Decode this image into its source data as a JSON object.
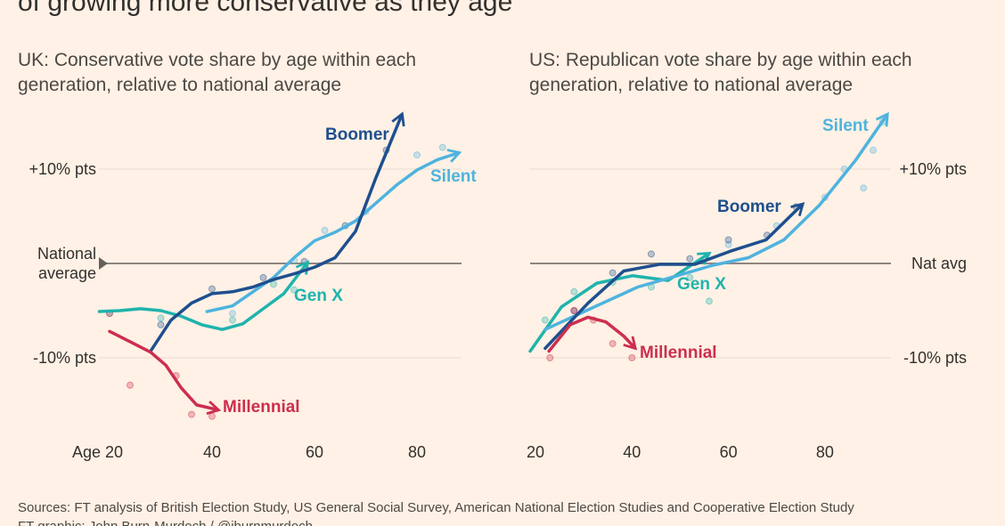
{
  "title": "of growing more conservative as they age",
  "chart_data": [
    {
      "type": "line",
      "title": "UK: Conservative vote share by age within each generation, relative to national average",
      "xlim": [
        18,
        88
      ],
      "xticks": [
        {
          "value": 20,
          "label": "Age 20"
        },
        40,
        60,
        80
      ],
      "ylim": [
        -17,
        16
      ],
      "yticks": [
        {
          "value": -10,
          "label": "-10% pts"
        },
        {
          "value": 0,
          "label": "National average"
        },
        {
          "value": 10,
          "label": "+10% pts"
        }
      ],
      "series": [
        {
          "name": "Gen X",
          "color": "#1fb3ad",
          "x": [
            18,
            22,
            26,
            30,
            34,
            38,
            42,
            46,
            50,
            54,
            58.5
          ],
          "values": [
            -5.1,
            -5,
            -4.8,
            -5,
            -5.6,
            -6.5,
            -7,
            -6.4,
            -4.8,
            -3.2,
            0
          ],
          "dots": {
            "x": [
              20,
              30,
              44,
              52,
              56
            ],
            "y": [
              -5.3,
              -5.8,
              -6,
              -2.2,
              -2.8
            ]
          }
        },
        {
          "name": "Silent",
          "color": "#4eb3de",
          "x": [
            39,
            44,
            48,
            52,
            56,
            60,
            64,
            68,
            72,
            76,
            80,
            84,
            88
          ],
          "values": [
            -5.1,
            -4.5,
            -3,
            -1.5,
            0.6,
            2.4,
            3.3,
            4.5,
            6.4,
            8.3,
            9.9,
            11,
            11.7
          ],
          "dots": {
            "x": [
              44,
              56,
              62,
              70,
              80,
              85
            ],
            "y": [
              -5.3,
              0.3,
              3.5,
              5.5,
              11.5,
              12.3
            ]
          }
        },
        {
          "name": "Boomer",
          "color": "#1e4f8e",
          "x": [
            28,
            32,
            36,
            40,
            44,
            48,
            52,
            56,
            60,
            64,
            68,
            72,
            77
          ],
          "values": [
            -9.3,
            -6,
            -4.2,
            -3.2,
            -3,
            -2.5,
            -1.7,
            -1.1,
            -0.4,
            0.6,
            3.4,
            9.1,
            15.7
          ],
          "dots": {
            "x": [
              30,
              40,
              50,
              58,
              66,
              74
            ],
            "y": [
              -6.5,
              -2.7,
              -1.5,
              0.2,
              4,
              12
            ]
          }
        },
        {
          "name": "Millennial",
          "color": "#cc2e4e",
          "x": [
            20,
            24,
            28,
            31,
            34,
            37,
            41
          ],
          "values": [
            -7.2,
            -8.3,
            -9.4,
            -10.8,
            -13.2,
            -15,
            -15.5
          ],
          "dots": {
            "x": [
              20,
              24,
              33,
              36,
              40
            ],
            "y": [
              -5.3,
              -12.9,
              -11.9,
              -16,
              -16.2
            ]
          }
        }
      ]
    },
    {
      "type": "line",
      "title": "US: Republican vote share by age within each generation, relative to national average",
      "xlim": [
        19,
        94
      ],
      "xticks": [
        20,
        40,
        60,
        80
      ],
      "ylim": [
        -17,
        16
      ],
      "yticks": [
        {
          "value": -10,
          "label": "-10% pts"
        },
        {
          "value": 0,
          "label": "Nat avg"
        },
        {
          "value": 10,
          "label": "+10% pts"
        }
      ],
      "series": [
        {
          "name": "Gen X",
          "color": "#1fb3ad",
          "x": [
            18.9,
            25.4,
            32.7,
            40.1,
            47.5,
            55.8
          ],
          "values": [
            -9.3,
            -4.6,
            -2.1,
            -1.3,
            -1.8,
            1
          ],
          "dots": {
            "x": [
              22,
              28,
              36,
              44,
              52,
              56
            ],
            "y": [
              -6,
              -3,
              -2,
              -2.5,
              -1.5,
              -4
            ]
          }
        },
        {
          "name": "Silent",
          "color": "#4eb3de",
          "x": [
            22,
            41.2,
            49.4,
            56.7,
            64.1,
            71.5,
            78.9,
            86.3,
            92.8
          ],
          "values": [
            -7,
            -2.5,
            -1.3,
            -0.2,
            0.6,
            2.5,
            6.2,
            10.9,
            15.7
          ],
          "dots": {
            "x": [
              60,
              70,
              80,
              84,
              88,
              90,
              92
            ],
            "y": [
              2,
              4,
              7,
              10,
              8,
              12,
              15
            ]
          }
        },
        {
          "name": "Boomer",
          "color": "#1e4f8e",
          "x": [
            22,
            30.9,
            38.3,
            45.7,
            53,
            60.4,
            67.8,
            75.2
          ],
          "values": [
            -9,
            -4.2,
            -0.8,
            -0.1,
            -0.1,
            1.3,
            2.5,
            6.2
          ],
          "dots": {
            "x": [
              28,
              36,
              44,
              52,
              60,
              68,
              74
            ],
            "y": [
              -5,
              -1,
              1,
              0.5,
              2.5,
              3,
              6
            ]
          }
        },
        {
          "name": "Millennial",
          "color": "#cc2e4e",
          "x": [
            22.8,
            27.2,
            30.9,
            34.6,
            38.3,
            40.5
          ],
          "values": [
            -9.3,
            -6.5,
            -5.7,
            -6.2,
            -7.7,
            -8.9
          ],
          "dots": {
            "x": [
              23,
              28,
              32,
              36,
              40
            ],
            "y": [
              -10,
              -5,
              -6,
              -8.5,
              -10
            ]
          }
        }
      ]
    }
  ],
  "footer": {
    "sources": "Sources: FT analysis of British Election Study, US General Social Survey, American National Election Studies and Cooperative Election Study",
    "credit": "FT graphic: John Burn-Murdoch / @jburnmurdoch"
  }
}
